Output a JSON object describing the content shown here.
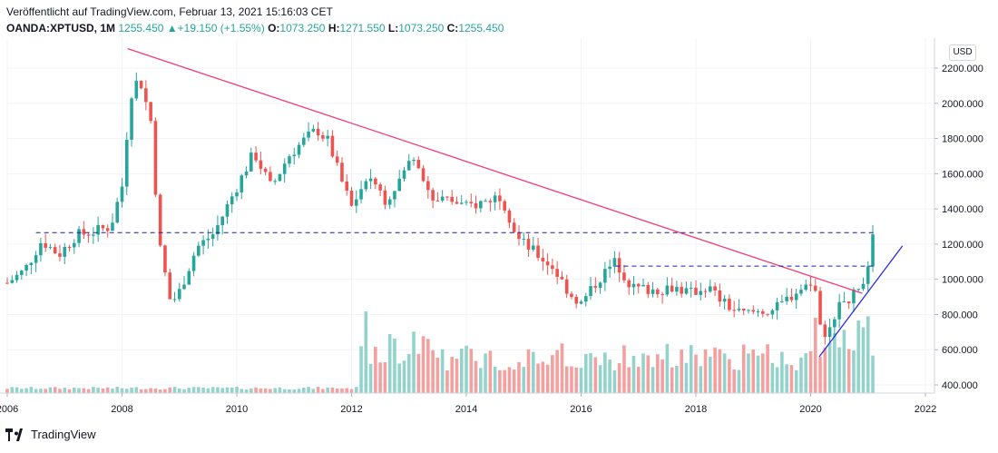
{
  "header": {
    "published": "Veröffentlicht auf TradingView.com, Februar 13, 2021 15:16:03 CET",
    "symbol": "OANDA:XPTUSD, 1M",
    "last": "1255.450",
    "change": "+19.150 (+1.55%)",
    "open_label": "O:",
    "open_value": "1073.250",
    "high_label": "H:",
    "high_value": "1271.550",
    "low_label": "L:",
    "low_value": "1073.250",
    "close_label": "C:",
    "close_value": "1255.450"
  },
  "currency_badge": "USD",
  "footer": {
    "brand": "TradingView"
  },
  "colors": {
    "up": "#26a69a",
    "down": "#ef5350",
    "vol_up": "#93d3cc",
    "vol_down": "#f3a0a0",
    "trend_down": "#f23b71",
    "trend_up": "#2b2bdb",
    "hline": "#1c1cb8",
    "grid": "#f0f3fa",
    "axis_text": "#131722"
  },
  "chart_data": {
    "type": "candlestick",
    "title": "OANDA:XPTUSD, 1M",
    "x_axis": {
      "type": "time",
      "range": [
        2006.0,
        2022.0
      ],
      "ticks": [
        {
          "value": 2006,
          "label": "2006"
        },
        {
          "value": 2008,
          "label": "2008"
        },
        {
          "value": 2010,
          "label": "2010"
        },
        {
          "value": 2012,
          "label": "2012"
        },
        {
          "value": 2014,
          "label": "2014"
        },
        {
          "value": 2016,
          "label": "2016"
        },
        {
          "value": 2018,
          "label": "2018"
        },
        {
          "value": 2020,
          "label": "2020"
        },
        {
          "value": 2022,
          "label": "2022"
        }
      ]
    },
    "y_axis": {
      "label": "USD",
      "range": [
        350,
        2320
      ],
      "ticks": [
        {
          "value": 400,
          "label": "400.000"
        },
        {
          "value": 600,
          "label": "600.000"
        },
        {
          "value": 800,
          "label": "800.000"
        },
        {
          "value": 1000,
          "label": "1000.000"
        },
        {
          "value": 1200,
          "label": "1200.000"
        },
        {
          "value": 1400,
          "label": "1400.000"
        },
        {
          "value": 1600,
          "label": "1600.000"
        },
        {
          "value": 1800,
          "label": "1800.000"
        },
        {
          "value": 2000,
          "label": "2000.000"
        },
        {
          "value": 2200,
          "label": "2200.000"
        }
      ]
    },
    "monthly_closes_approx": [
      [
        2006.0,
        980
      ],
      [
        2006.3,
        1050
      ],
      [
        2006.6,
        1220
      ],
      [
        2006.9,
        1140
      ],
      [
        2007.2,
        1250
      ],
      [
        2007.5,
        1270
      ],
      [
        2007.8,
        1300
      ],
      [
        2008.0,
        1530
      ],
      [
        2008.15,
        2050
      ],
      [
        2008.3,
        2150
      ],
      [
        2008.5,
        1900
      ],
      [
        2008.65,
        1200
      ],
      [
        2008.85,
        860
      ],
      [
        2009.0,
        930
      ],
      [
        2009.3,
        1180
      ],
      [
        2009.6,
        1260
      ],
      [
        2009.9,
        1460
      ],
      [
        2010.3,
        1720
      ],
      [
        2010.6,
        1520
      ],
      [
        2010.9,
        1700
      ],
      [
        2011.2,
        1800
      ],
      [
        2011.4,
        1850
      ],
      [
        2011.6,
        1780
      ],
      [
        2011.8,
        1580
      ],
      [
        2012.0,
        1410
      ],
      [
        2012.3,
        1600
      ],
      [
        2012.6,
        1450
      ],
      [
        2012.9,
        1600
      ],
      [
        2013.1,
        1720
      ],
      [
        2013.4,
        1450
      ],
      [
        2013.7,
        1450
      ],
      [
        2014.0,
        1410
      ],
      [
        2014.3,
        1440
      ],
      [
        2014.6,
        1480
      ],
      [
        2014.9,
        1230
      ],
      [
        2015.2,
        1150
      ],
      [
        2015.5,
        1070
      ],
      [
        2015.8,
        920
      ],
      [
        2016.0,
        860
      ],
      [
        2016.3,
        1000
      ],
      [
        2016.6,
        1100
      ],
      [
        2016.9,
        950
      ],
      [
        2017.3,
        940
      ],
      [
        2017.6,
        960
      ],
      [
        2017.9,
        920
      ],
      [
        2018.2,
        960
      ],
      [
        2018.5,
        860
      ],
      [
        2018.8,
        800
      ],
      [
        2019.1,
        820
      ],
      [
        2019.4,
        830
      ],
      [
        2019.7,
        920
      ],
      [
        2019.9,
        960
      ],
      [
        2020.1,
        950
      ],
      [
        2020.2,
        600
      ],
      [
        2020.4,
        800
      ],
      [
        2020.6,
        880
      ],
      [
        2020.8,
        920
      ],
      [
        2020.95,
        1030
      ],
      [
        2021.05,
        1073
      ],
      [
        2021.12,
        1255
      ]
    ],
    "series": [
      {
        "name": "Price (monthly candles)",
        "last_close": 1255.45
      },
      {
        "name": "Volume",
        "max_period": 2012.3
      }
    ],
    "annotations": [
      {
        "type": "trendline",
        "name": "descending resistance",
        "from": [
          2008.1,
          2310
        ],
        "to": [
          2020.9,
          920
        ]
      },
      {
        "type": "trendline",
        "name": "ascending support",
        "from": [
          2020.15,
          560
        ],
        "to": [
          2021.6,
          1190
        ]
      },
      {
        "type": "horizontal",
        "name": "resistance level",
        "value": 1265,
        "from": 2006.5,
        "to": 2021.15
      },
      {
        "type": "horizontal",
        "name": "support level",
        "value": 1075,
        "from": 2016.6,
        "to": 2021.15
      }
    ]
  }
}
